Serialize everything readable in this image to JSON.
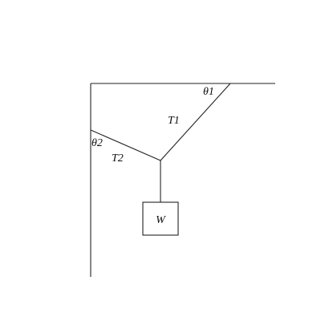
{
  "labels": {
    "theta1": "θ1",
    "theta2": "θ2",
    "tension1": "T1",
    "tension2": "T2",
    "weight": "W"
  },
  "colors": {
    "stroke": "#222222",
    "text": "#111111",
    "background": "#ffffff"
  }
}
